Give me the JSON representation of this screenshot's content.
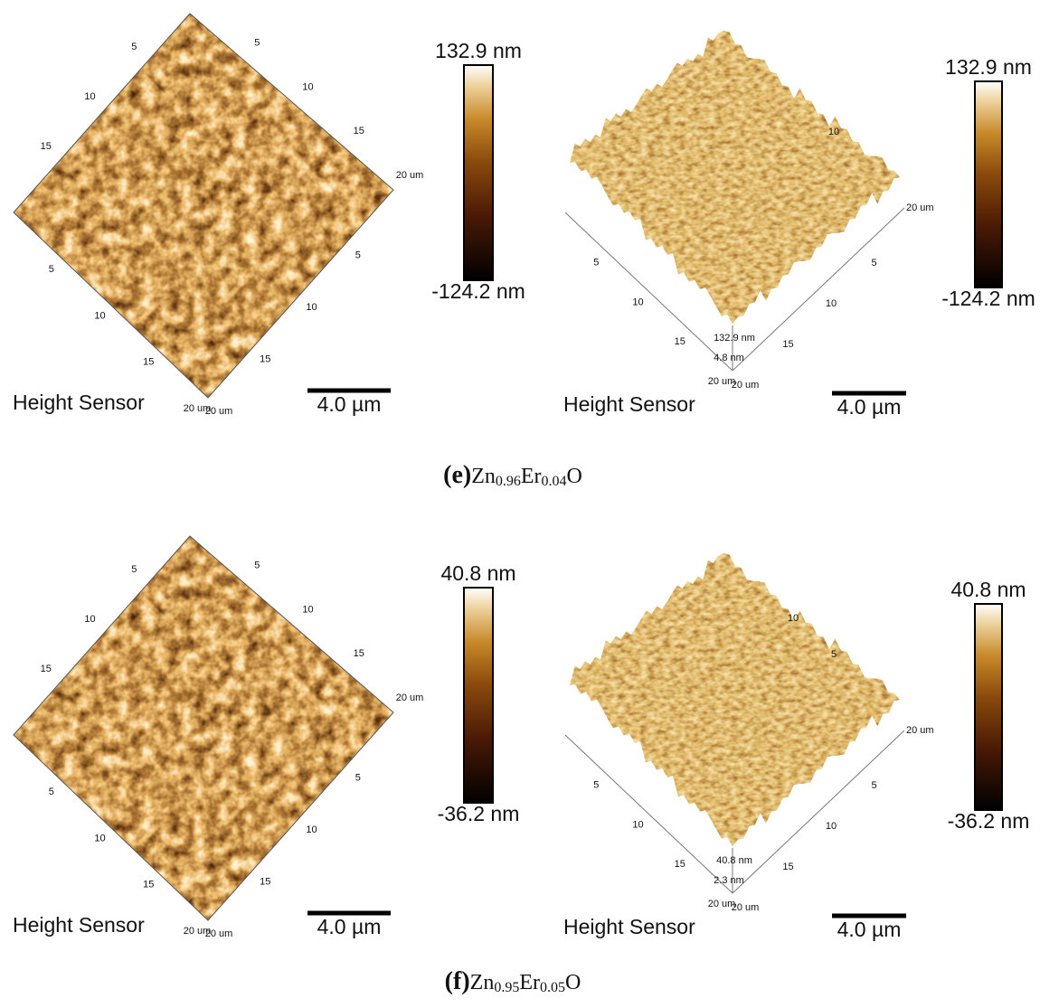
{
  "panels": [
    {
      "label": "(e)",
      "formula": [
        "Zn",
        "0.96",
        "Er",
        "0.04",
        "O"
      ],
      "images": [
        {
          "kind": "2d",
          "sensor": "Height Sensor",
          "scale_bar": "4.0 µm",
          "colorbar": {
            "max": "132.9 nm",
            "min": "-124.2 nm"
          },
          "axes": {
            "top_left": [
              "5",
              "10",
              "15"
            ],
            "top_right": [
              "5",
              "10",
              "15",
              "20 um"
            ],
            "bottom_left": [
              "5",
              "10",
              "15",
              "20 um"
            ],
            "bottom_right": [
              "5",
              "10",
              "15",
              "20 um"
            ]
          }
        },
        {
          "kind": "3d",
          "sensor": "Height Sensor",
          "scale_bar": "4.0 µm",
          "colorbar": {
            "max": "132.9 nm",
            "min": "-124.2 nm"
          },
          "axes": {
            "front_left": [
              "5",
              "10",
              "15",
              "20 um"
            ],
            "front_right": [
              "5",
              "10",
              "15",
              "20 um"
            ],
            "right_end": "20 um",
            "back": [
              "10"
            ],
            "z": [
              "132.9 nm",
              "4.8 nm"
            ]
          }
        }
      ]
    },
    {
      "label": "(f)",
      "formula": [
        "Zn",
        "0.95",
        "Er",
        "0.05",
        "O"
      ],
      "images": [
        {
          "kind": "2d",
          "sensor": "Height Sensor",
          "scale_bar": "4.0 µm",
          "colorbar": {
            "max": "40.8 nm",
            "min": "-36.2 nm"
          },
          "axes": {
            "top_left": [
              "5",
              "10",
              "15"
            ],
            "top_right": [
              "5",
              "10",
              "15",
              "20 um"
            ],
            "bottom_left": [
              "5",
              "10",
              "15",
              "20 um"
            ],
            "bottom_right": [
              "5",
              "10",
              "15",
              "20 um"
            ]
          }
        },
        {
          "kind": "3d",
          "sensor": "Height Sensor",
          "scale_bar": "4.0 µm",
          "colorbar": {
            "max": "40.8 nm",
            "min": "-36.2 nm"
          },
          "axes": {
            "front_left": [
              "5",
              "10",
              "15",
              "20 um"
            ],
            "front_right": [
              "5",
              "10",
              "15",
              "20 um"
            ],
            "right_end": "20 um",
            "back": [
              "5",
              "10"
            ],
            "z": [
              "40.8 nm",
              "2.3 nm"
            ]
          }
        }
      ]
    }
  ]
}
